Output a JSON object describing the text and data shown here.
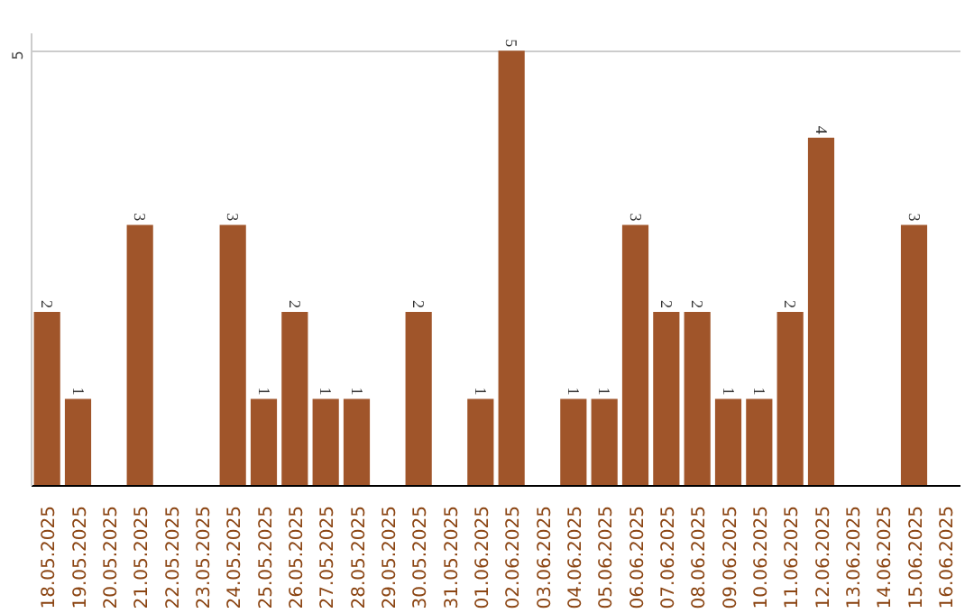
{
  "chart_data": {
    "type": "bar",
    "categories": [
      "18.05.2025",
      "19.05.2025",
      "20.05.2025",
      "21.05.2025",
      "22.05.2025",
      "23.05.2025",
      "24.05.2025",
      "25.05.2025",
      "26.05.2025",
      "27.05.2025",
      "28.05.2025",
      "29.05.2025",
      "30.05.2025",
      "31.05.2025",
      "01.06.2025",
      "02.06.2025",
      "03.06.2025",
      "04.06.2025",
      "05.06.2025",
      "06.06.2025",
      "07.06.2025",
      "08.06.2025",
      "09.06.2025",
      "10.06.2025",
      "11.06.2025",
      "12.06.2025",
      "13.06.2025",
      "14.06.2025",
      "15.06.2025",
      "16.06.2025"
    ],
    "values": [
      2,
      1,
      0,
      3,
      0,
      0,
      3,
      1,
      2,
      1,
      1,
      0,
      2,
      0,
      1,
      5,
      0,
      1,
      1,
      3,
      2,
      2,
      1,
      1,
      2,
      4,
      0,
      0,
      3,
      0
    ],
    "value_labels": [
      "2",
      "1",
      null,
      "3",
      null,
      null,
      "3",
      "1",
      "2",
      "1",
      "1",
      null,
      "2",
      null,
      "1",
      "5",
      null,
      "1",
      "1",
      "3",
      "2",
      "2",
      "1",
      "1",
      "2",
      "4",
      null,
      null,
      "3",
      null
    ],
    "color": "#a0552a",
    "ylim": [
      0,
      5.2
    ],
    "yticks": [
      5
    ],
    "grid": "y"
  }
}
